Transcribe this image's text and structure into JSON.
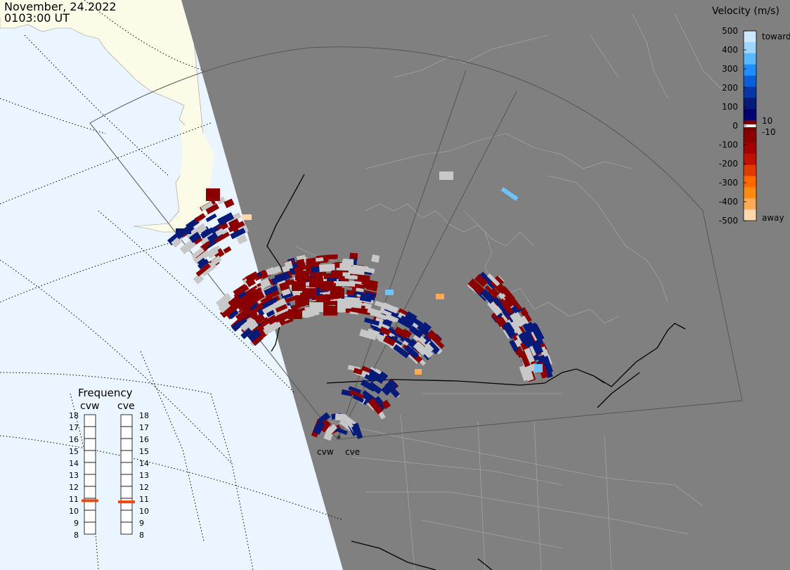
{
  "header": {
    "date": "November, 24.2022",
    "time": "0103:00 UT"
  },
  "colorbar": {
    "title": "Velocity (m/s)",
    "ticks": [
      "500",
      "400",
      "300",
      "200",
      "100",
      "0",
      "-100",
      "-200",
      "-300",
      "-400",
      "-500"
    ],
    "inner_labels": [
      "10",
      "-10"
    ],
    "toward_label": "toward",
    "away_label": "away",
    "colors": [
      "#cde9ff",
      "#9ed6ff",
      "#5ab8ff",
      "#1f8fff",
      "#0a5fd6",
      "#0538a6",
      "#061a7a",
      "#000070",
      "#7a0000",
      "#8a0000",
      "#a40000",
      "#c01000",
      "#e03a00",
      "#ff6a00",
      "#ff8a10",
      "#ffaa55",
      "#ffd8b0"
    ]
  },
  "frequency_panel": {
    "title": "Frequency",
    "radars": [
      "cvw",
      "cve"
    ],
    "scale": [
      "18",
      "17",
      "16",
      "15",
      "14",
      "13",
      "12",
      "11",
      "10",
      "9",
      "8"
    ],
    "cvw_mhz": 10.8,
    "cve_mhz": 10.7,
    "marker_color": "#e84a10"
  },
  "radar_labels": [
    "cvw",
    "cve"
  ],
  "colors": {
    "ocean": "#eaf5ff",
    "land_day": "#fbfbe8",
    "night": "#808080",
    "border": "#000000",
    "coast": "#9a9a9a",
    "grid": "#000000",
    "gray_scatter": "#c8c8c8"
  }
}
